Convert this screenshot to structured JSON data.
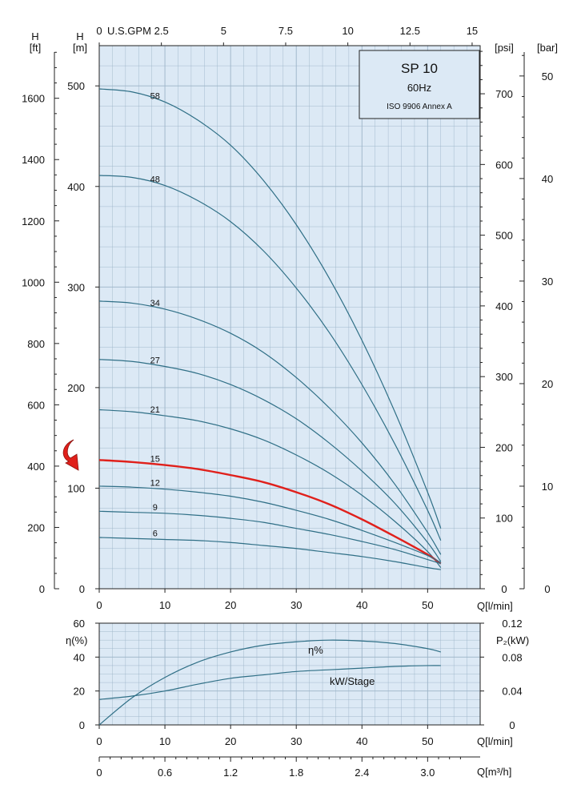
{
  "chart_data": [
    {
      "type": "line",
      "title": "SP 10",
      "frequency": "60Hz",
      "standard": "ISO 9906 Annex A",
      "x_label": "Q[l/min]",
      "x_range": [
        0,
        58
      ],
      "x_ticks": [
        "0",
        "10",
        "20",
        "30",
        "40",
        "50"
      ],
      "top_axis": {
        "label": "U.S.GPM",
        "ticks": [
          "0",
          "2.5",
          "5",
          "7.5",
          "10",
          "12.5",
          "15"
        ]
      },
      "left_axis_m": {
        "unit": "[m]",
        "label": "H",
        "range": [
          0,
          540
        ],
        "ticks": [
          "0",
          "100",
          "200",
          "300",
          "400",
          "500"
        ]
      },
      "left_axis_ft": {
        "unit": "[ft]",
        "label": "H",
        "ticks": [
          "0",
          "200",
          "400",
          "600",
          "800",
          "1000",
          "1200",
          "1400",
          "1600"
        ]
      },
      "right_axis_psi": {
        "unit": "[psi]",
        "ticks": [
          "0",
          "100",
          "200",
          "300",
          "400",
          "500",
          "600",
          "700"
        ]
      },
      "right_axis_bar": {
        "unit": "[bar]",
        "ticks": [
          "0",
          "10",
          "20",
          "30",
          "40",
          "50"
        ]
      },
      "colors": {
        "curve": "#2f6f86",
        "highlight": "#e0201b",
        "grid_bg": "#dce9f5",
        "grid_line": "#9cb4c8"
      },
      "highlighted_series": "15",
      "series": [
        {
          "name": "58",
          "x": [
            0,
            5,
            10,
            15,
            20,
            25,
            30,
            35,
            40,
            45,
            50,
            52
          ],
          "y": [
            497,
            494,
            484,
            466,
            441,
            406,
            362,
            309,
            247,
            176,
            96,
            60
          ]
        },
        {
          "name": "48",
          "x": [
            0,
            5,
            10,
            15,
            20,
            25,
            30,
            35,
            40,
            45,
            50,
            52
          ],
          "y": [
            411,
            409,
            401,
            386,
            365,
            336,
            299,
            255,
            203,
            144,
            78,
            48
          ]
        },
        {
          "name": "34",
          "x": [
            0,
            5,
            10,
            15,
            20,
            25,
            30,
            35,
            40,
            45,
            50,
            52
          ],
          "y": [
            286,
            284,
            278,
            268,
            254,
            235,
            210,
            180,
            145,
            104,
            56,
            34
          ]
        },
        {
          "name": "27",
          "x": [
            0,
            5,
            10,
            15,
            20,
            25,
            30,
            35,
            40,
            45,
            50,
            52
          ],
          "y": [
            228,
            226,
            221,
            214,
            203,
            188,
            169,
            145,
            117,
            85,
            46,
            27
          ]
        },
        {
          "name": "21",
          "x": [
            0,
            5,
            10,
            15,
            20,
            25,
            30,
            35,
            40,
            45,
            50,
            52
          ],
          "y": [
            178,
            176,
            172,
            167,
            159,
            148,
            133,
            115,
            93,
            67,
            37,
            21
          ]
        },
        {
          "name": "15",
          "x": [
            0,
            5,
            10,
            15,
            20,
            25,
            30,
            35,
            40,
            45,
            50,
            52
          ],
          "y": [
            128,
            126,
            123,
            119,
            113,
            106,
            96,
            84,
            69,
            52,
            34,
            25
          ]
        },
        {
          "name": "12",
          "x": [
            0,
            5,
            10,
            15,
            20,
            25,
            30,
            35,
            40,
            45,
            50,
            52
          ],
          "y": [
            102,
            101,
            99,
            96,
            92,
            86,
            78,
            69,
            58,
            46,
            33,
            26
          ]
        },
        {
          "name": "9",
          "x": [
            0,
            5,
            10,
            15,
            20,
            25,
            30,
            35,
            40,
            45,
            50,
            52
          ],
          "y": [
            77,
            76,
            75,
            73,
            70,
            66,
            60,
            54,
            47,
            39,
            29,
            25
          ]
        },
        {
          "name": "6",
          "x": [
            0,
            5,
            10,
            15,
            20,
            25,
            30,
            35,
            40,
            45,
            50,
            52
          ],
          "y": [
            51,
            50,
            49,
            48,
            46,
            43,
            40,
            36,
            32,
            27,
            21,
            19
          ]
        }
      ]
    },
    {
      "type": "line",
      "x_label": "Q[l/min]",
      "x_range": [
        0,
        58
      ],
      "x_ticks": [
        "0",
        "10",
        "20",
        "30",
        "40",
        "50"
      ],
      "left_axis": {
        "label": "η(%)",
        "range": [
          0,
          60
        ],
        "ticks": [
          "0",
          "20",
          "40",
          "60"
        ]
      },
      "right_axis": {
        "label": "P₂(kW)",
        "range": [
          0,
          0.12
        ],
        "ticks": [
          "0",
          "0.04",
          "0.08",
          "0.12"
        ]
      },
      "bottom_axis_m3h": {
        "label": "Q[m³/h]",
        "ticks": [
          "0",
          "0.6",
          "1.2",
          "1.8",
          "2.4",
          "3.0"
        ]
      },
      "series": [
        {
          "name": "η%",
          "axis": "left",
          "x": [
            0,
            5,
            10,
            15,
            20,
            25,
            30,
            35,
            40,
            45,
            50,
            52
          ],
          "y": [
            0,
            16,
            28,
            37,
            43,
            47,
            49,
            50,
            49.5,
            48,
            45,
            43
          ]
        },
        {
          "name": "kW/Stage",
          "axis": "right",
          "x": [
            0,
            5,
            10,
            15,
            20,
            25,
            30,
            35,
            40,
            45,
            50,
            52
          ],
          "y": [
            0.03,
            0.034,
            0.04,
            0.048,
            0.055,
            0.059,
            0.063,
            0.065,
            0.067,
            0.069,
            0.07,
            0.07
          ]
        }
      ]
    }
  ]
}
